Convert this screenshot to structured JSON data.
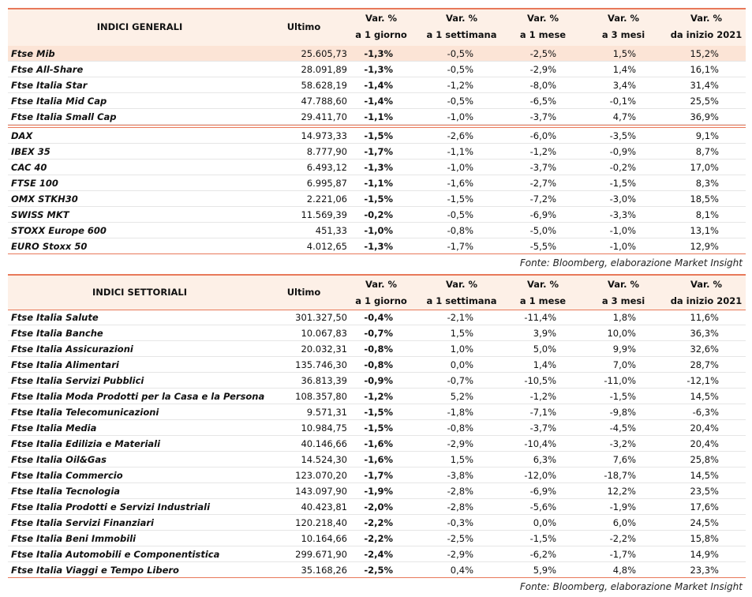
{
  "tables": [
    {
      "header": {
        "title": "INDICI GENERALI",
        "ultimo": "Ultimo",
        "columns": [
          [
            "Var. %",
            "a 1 giorno"
          ],
          [
            "Var. %",
            "a 1 settimana"
          ],
          [
            "Var. %",
            "a 1 mese"
          ],
          [
            "Var. %",
            "a 3 mesi"
          ],
          [
            "Var. %",
            "da inizio 2021"
          ]
        ]
      },
      "sections": [
        [
          [
            "Ftse Mib",
            "25.605,73",
            "-1,3%",
            "-0,5%",
            "-2,5%",
            "1,5%",
            "15,2%"
          ],
          [
            "Ftse All-Share",
            "28.091,89",
            "-1,3%",
            "-0,5%",
            "-2,9%",
            "1,4%",
            "16,1%"
          ],
          [
            "Ftse Italia Star",
            "58.628,19",
            "-1,4%",
            "-1,2%",
            "-8,0%",
            "3,4%",
            "31,4%"
          ],
          [
            "Ftse Italia Mid Cap",
            "47.788,60",
            "-1,4%",
            "-0,5%",
            "-6,5%",
            "-0,1%",
            "25,5%"
          ],
          [
            "Ftse Italia Small Cap",
            "29.411,70",
            "-1,1%",
            "-1,0%",
            "-3,7%",
            "4,7%",
            "36,9%"
          ]
        ],
        [
          [
            "DAX",
            "14.973,33",
            "-1,5%",
            "-2,6%",
            "-6,0%",
            "-3,5%",
            "9,1%"
          ],
          [
            "IBEX 35",
            "8.777,90",
            "-1,7%",
            "-1,1%",
            "-1,2%",
            "-0,9%",
            "8,7%"
          ],
          [
            "CAC 40",
            "6.493,12",
            "-1,3%",
            "-1,0%",
            "-3,7%",
            "-0,2%",
            "17,0%"
          ],
          [
            "FTSE 100",
            "6.995,87",
            "-1,1%",
            "-1,6%",
            "-2,7%",
            "-1,5%",
            "8,3%"
          ],
          [
            "OMX STKH30",
            "2.221,06",
            "-1,5%",
            "-1,5%",
            "-7,2%",
            "-3,0%",
            "18,5%"
          ],
          [
            "SWISS MKT",
            "11.569,39",
            "-0,2%",
            "-0,5%",
            "-6,9%",
            "-3,3%",
            "8,1%"
          ],
          [
            "STOXX Europe 600",
            "451,33",
            "-1,0%",
            "-0,8%",
            "-5,0%",
            "-1,0%",
            "13,1%"
          ],
          [
            "EURO Stoxx 50",
            "4.012,65",
            "-1,3%",
            "-1,7%",
            "-5,5%",
            "-1,0%",
            "12,9%"
          ]
        ]
      ],
      "source": "Fonte: Bloomberg, elaborazione Market Insight"
    },
    {
      "header": {
        "title": "INDICI SETTORIALI",
        "ultimo": "Ultimo",
        "columns": [
          [
            "Var. %",
            "a 1 giorno"
          ],
          [
            "Var. %",
            "a 1 settimana"
          ],
          [
            "Var. %",
            "a 1 mese"
          ],
          [
            "Var. %",
            "a 3 mesi"
          ],
          [
            "Var. %",
            "da inizio 2021"
          ]
        ]
      },
      "sections": [
        [
          [
            "Ftse Italia Salute",
            "301.327,50",
            "-0,4%",
            "-2,1%",
            "-11,4%",
            "1,8%",
            "11,6%"
          ],
          [
            "Ftse Italia Banche",
            "10.067,83",
            "-0,7%",
            "1,5%",
            "3,9%",
            "10,0%",
            "36,3%"
          ],
          [
            "Ftse Italia Assicurazioni",
            "20.032,31",
            "-0,8%",
            "1,0%",
            "5,0%",
            "9,9%",
            "32,6%"
          ],
          [
            "Ftse Italia Alimentari",
            "135.746,30",
            "-0,8%",
            "0,0%",
            "1,4%",
            "7,0%",
            "28,7%"
          ],
          [
            "Ftse Italia Servizi Pubblici",
            "36.813,39",
            "-0,9%",
            "-0,7%",
            "-10,5%",
            "-11,0%",
            "-12,1%"
          ],
          [
            "Ftse Italia Moda Prodotti per la Casa e la Persona",
            "108.357,80",
            "-1,2%",
            "5,2%",
            "-1,2%",
            "-1,5%",
            "14,5%"
          ],
          [
            "Ftse Italia Telecomunicazioni",
            "9.571,31",
            "-1,5%",
            "-1,8%",
            "-7,1%",
            "-9,8%",
            "-6,3%"
          ],
          [
            "Ftse Italia Media",
            "10.984,75",
            "-1,5%",
            "-0,8%",
            "-3,7%",
            "-4,5%",
            "20,4%"
          ],
          [
            "Ftse Italia Edilizia e Materiali",
            "40.146,66",
            "-1,6%",
            "-2,9%",
            "-10,4%",
            "-3,2%",
            "20,4%"
          ],
          [
            "Ftse Italia Oil&Gas",
            "14.524,30",
            "-1,6%",
            "1,5%",
            "6,3%",
            "7,6%",
            "25,8%"
          ],
          [
            "Ftse Italia Commercio",
            "123.070,20",
            "-1,7%",
            "-3,8%",
            "-12,0%",
            "-18,7%",
            "14,5%"
          ],
          [
            "Ftse Italia Tecnologia",
            "143.097,90",
            "-1,9%",
            "-2,8%",
            "-6,9%",
            "12,2%",
            "23,5%"
          ],
          [
            "Ftse Italia Prodotti e Servizi Industriali",
            "40.423,81",
            "-2,0%",
            "-2,8%",
            "-5,6%",
            "-1,9%",
            "17,6%"
          ],
          [
            "Ftse Italia Servizi Finanziari",
            "120.218,40",
            "-2,2%",
            "-0,3%",
            "0,0%",
            "6,0%",
            "24,5%"
          ],
          [
            "Ftse Italia Beni Immobili",
            "10.164,66",
            "-2,2%",
            "-2,5%",
            "-1,5%",
            "-2,2%",
            "15,8%"
          ],
          [
            "Ftse Italia Automobili e Componentistica",
            "299.671,90",
            "-2,4%",
            "-2,9%",
            "-6,2%",
            "-1,7%",
            "14,9%"
          ],
          [
            "Ftse Italia Viaggi e Tempo Libero",
            "35.168,26",
            "-2,5%",
            "0,4%",
            "5,9%",
            "4,8%",
            "23,3%"
          ]
        ]
      ],
      "source": "Fonte: Bloomberg, elaborazione Market Insight"
    }
  ]
}
